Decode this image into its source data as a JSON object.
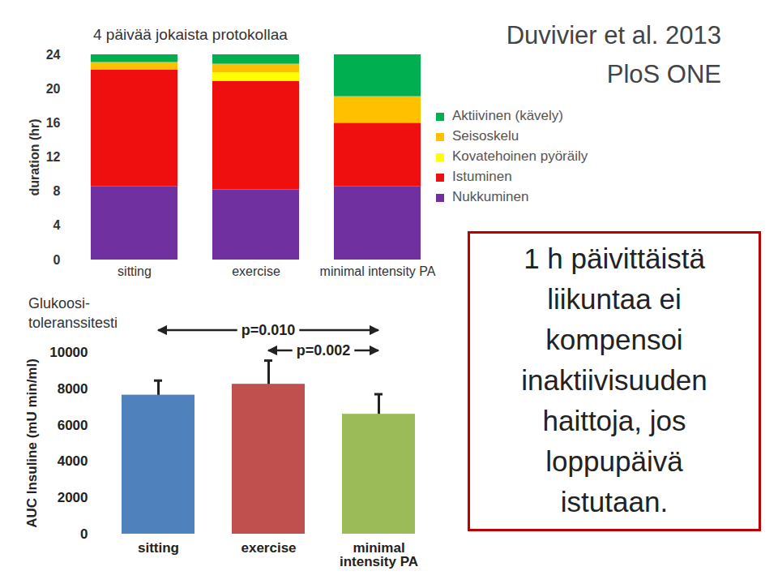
{
  "slide": {
    "citation": "Duvivier et al. 2013",
    "journal": "PloS ONE",
    "message": [
      "1 h päivittäistä",
      "liikuntaa ei",
      "kompensoi",
      "inaktiivisuuden",
      "haittoja, jos",
      "loppupäivä",
      "istutaan."
    ]
  },
  "chart_data": [
    {
      "type": "bar",
      "stacked": true,
      "title": "4 päivää jokaista protokollaa",
      "categories": [
        "sitting",
        "exercise",
        "minimal intensity PA"
      ],
      "ylabel": "duration (hr)",
      "ylim": [
        0,
        24
      ],
      "yticks": [
        0,
        4,
        8,
        12,
        16,
        20,
        24
      ],
      "legend": "right",
      "series": [
        {
          "name": "Nukkuminen",
          "color": "#7030a0",
          "values": [
            8.6,
            8.2,
            8.6
          ]
        },
        {
          "name": "Istuminen",
          "color": "#f00f0f",
          "values": [
            13.6,
            12.7,
            7.4
          ]
        },
        {
          "name": "Kovatehoinen pyöräily",
          "color": "#ffff00",
          "values": [
            0,
            1.0,
            0
          ]
        },
        {
          "name": "Seisoskelu",
          "color": "#ffc000",
          "values": [
            0.9,
            1.0,
            3.1
          ]
        },
        {
          "name": "Aktiivinen (kävely)",
          "color": "#00b050",
          "values": [
            0.9,
            1.1,
            4.9
          ]
        }
      ]
    },
    {
      "type": "bar",
      "title": "Glukoosi-toleranssitesti",
      "categories": [
        "sitting",
        "exercise",
        "minimal intensity PA"
      ],
      "values": [
        7650,
        8250,
        6600
      ],
      "errors": [
        800,
        1300,
        1100
      ],
      "colors": [
        "#4f81bd",
        "#c0504d",
        "#9bbb59"
      ],
      "ylabel": "AUC Insuline (mU min/ml)",
      "ylim": [
        0,
        10000
      ],
      "yticks": [
        0,
        2000,
        4000,
        6000,
        8000,
        10000
      ],
      "comparisons": [
        {
          "from": "sitting",
          "to": "minimal intensity PA",
          "label": "p=0.010"
        },
        {
          "from": "exercise",
          "to": "minimal intensity PA",
          "label": "p=0.002"
        }
      ]
    }
  ]
}
